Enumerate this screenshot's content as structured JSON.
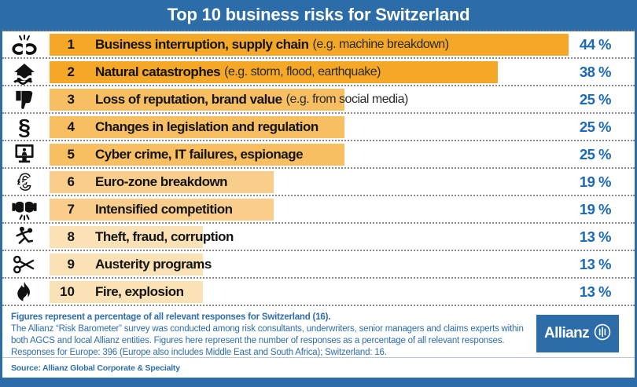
{
  "header": {
    "title": "Top 10 business risks for Switzerland"
  },
  "chart_data": {
    "type": "bar",
    "title": "Top 10 business risks for Switzerland",
    "orientation": "horizontal",
    "unit": "%",
    "xlim": [
      0,
      50
    ],
    "categories": [
      "Business interruption, supply chain (e.g. machine breakdown)",
      "Natural catastrophes (e.g. storm, flood, earthquake)",
      "Loss of reputation, brand value (e.g. from social media)",
      "Changes in legislation and regulation",
      "Cyber crime, IT failures, espionage",
      "Euro-zone breakdown",
      "Intensified competition",
      "Theft, fraud, corruption",
      "Austerity programs",
      "Fire, explosion"
    ],
    "values": [
      44,
      38,
      25,
      25,
      25,
      19,
      19,
      13,
      13,
      13
    ],
    "legend": "none",
    "grid": "off"
  },
  "rows": [
    {
      "rank": "1",
      "label": "Business interruption, supply chain",
      "note": "(e.g. machine breakdown)",
      "value": 44,
      "percent_label": "44 %",
      "icon": "broken-chain-icon",
      "bar_color": "#F5A728"
    },
    {
      "rank": "2",
      "label": "Natural catastrophes",
      "note": "(e.g. storm, flood, earthquake)",
      "value": 38,
      "percent_label": "38 %",
      "icon": "storm-house-icon",
      "bar_color": "#F5A728"
    },
    {
      "rank": "3",
      "label": "Loss of reputation, brand value",
      "note": "(e.g. from social media)",
      "value": 25,
      "percent_label": "25 %",
      "icon": "thumbs-down-icon",
      "bar_color": "#F7BE62"
    },
    {
      "rank": "4",
      "label": "Changes in legislation and regulation",
      "note": "",
      "value": 25,
      "percent_label": "25 %",
      "icon": "paragraph-icon",
      "bar_color": "#F7BE62"
    },
    {
      "rank": "5",
      "label": "Cyber crime, IT failures, espionage",
      "note": "",
      "value": 25,
      "percent_label": "25 %",
      "icon": "cyber-crime-icon",
      "bar_color": "#F7BE62"
    },
    {
      "rank": "6",
      "label": "Euro-zone breakdown",
      "note": "",
      "value": 19,
      "percent_label": "19 %",
      "icon": "broken-euro-icon",
      "bar_color": "#F9CE8C"
    },
    {
      "rank": "7",
      "label": "Intensified competition",
      "note": "",
      "value": 19,
      "percent_label": "19 %",
      "icon": "boxing-gloves-icon",
      "bar_color": "#F9CE8C"
    },
    {
      "rank": "8",
      "label": "Theft, fraud, corruption",
      "note": "",
      "value": 13,
      "percent_label": "13 %",
      "icon": "thief-icon",
      "bar_color": "#FBE2B6"
    },
    {
      "rank": "9",
      "label": "Austerity programs",
      "note": "",
      "value": 13,
      "percent_label": "13 %",
      "icon": "scissors-icon",
      "bar_color": "#FBE2B6"
    },
    {
      "rank": "10",
      "label": "Fire, explosion",
      "note": "",
      "value": 13,
      "percent_label": "13 %",
      "icon": "fire-icon",
      "bar_color": "#FBE2B6"
    }
  ],
  "footer": {
    "bold_line": "Figures represent a percentage of all relevant responses for Switzerland (16).",
    "body": "The Allianz “Risk Barometer” survey was conducted among risk consultants, underwriters, senior managers and claims experts within both AGCS and local Allianz entities. Figures here represent the number of responses as a percentage of all relevant responses. Responses for Europe: 396 (Europe also includes Middle East and South Africa); Switzerland: 16.",
    "source": "Source: Allianz Global Corporate & Specialty",
    "logo_text": "Allianz"
  },
  "colors": {
    "header_blue": "#2B6CA9",
    "percent_blue": "#1C69B8",
    "footer_blue": "#2F6EA9",
    "icon_black": "#111111"
  }
}
